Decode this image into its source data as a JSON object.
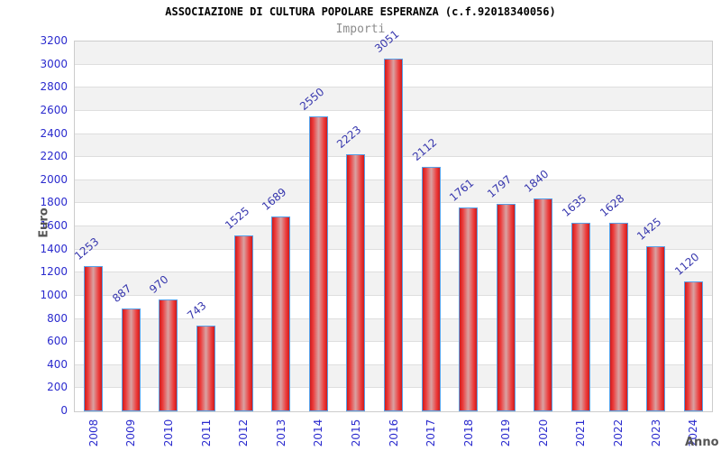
{
  "header": {
    "title": "ASSOCIAZIONE DI CULTURA POPOLARE ESPERANZA (c.f.92018340056)",
    "subtitle": "Importi"
  },
  "chart_data": {
    "type": "bar",
    "title": "ASSOCIAZIONE DI CULTURA POPOLARE ESPERANZA (c.f.92018340056)",
    "subtitle": "Importi",
    "xlabel": "Anno",
    "ylabel": "Euro",
    "categories": [
      "2008",
      "2009",
      "2010",
      "2011",
      "2012",
      "2013",
      "2014",
      "2015",
      "2016",
      "2017",
      "2018",
      "2019",
      "2020",
      "2021",
      "2022",
      "2023",
      "2024"
    ],
    "values": [
      1253,
      887,
      970,
      743,
      1525,
      1689,
      2550,
      2223,
      3051,
      2112,
      1761,
      1797,
      1840,
      1635,
      1628,
      1425,
      1120
    ],
    "ylim": [
      0,
      3200
    ],
    "ytick_step": 200,
    "grid": true,
    "legend": null,
    "colors": {
      "axis_text": "#2b2bce",
      "value_label_text": "#3737ae",
      "bar_border": "#57a0e8",
      "bar_edge_fill": "#cd1c1c",
      "bar_bright_fill": "#ec3a3a",
      "bar_center_fill": "#d9a2a2",
      "band_gray": "#f2f2f2",
      "gridline": "#dedede",
      "plot_border": "#cccccc",
      "axis_title_text": "#555555",
      "title_text": "#000000",
      "subtitle_text": "#8c8c8c"
    }
  }
}
